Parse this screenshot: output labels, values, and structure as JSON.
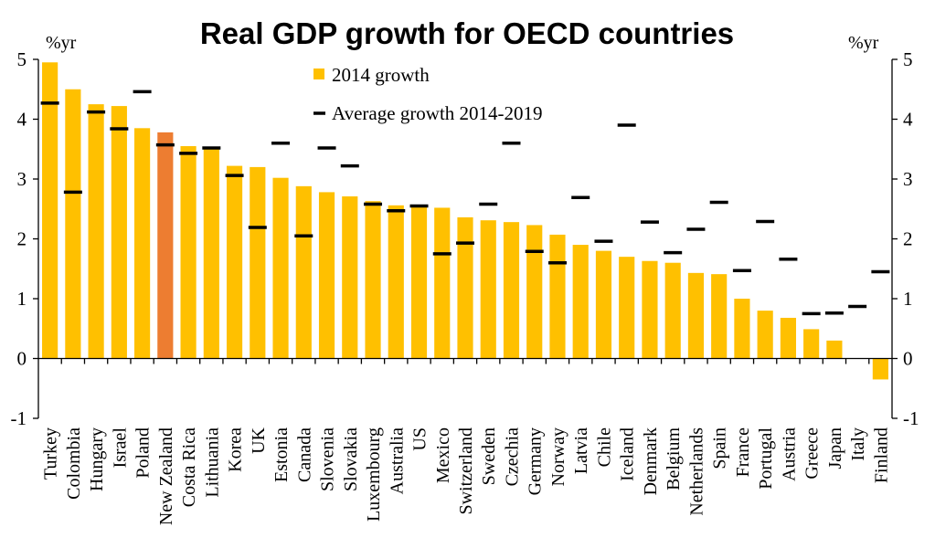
{
  "chart_data": {
    "type": "bar",
    "title": "Real GDP growth for OECD countries",
    "y_unit_left": "%yr",
    "y_unit_right": "%yr",
    "ylim": [
      -1,
      5
    ],
    "yticks": [
      -1,
      0,
      1,
      2,
      3,
      4,
      5
    ],
    "grid": false,
    "legend_position": "top-center",
    "categories": [
      "Turkey",
      "Colombia",
      "Hungary",
      "Israel",
      "Poland",
      "New Zealand",
      "Costa Rica",
      "Lithuania",
      "Korea",
      "UK",
      "Estonia",
      "Canada",
      "Slovenia",
      "Slovakia",
      "Luxembourg",
      "Australia",
      "US",
      "Mexico",
      "Switzerland",
      "Sweden",
      "Czechia",
      "Germany",
      "Norway",
      "Latvia",
      "Chile",
      "Iceland",
      "Denmark",
      "Belgium",
      "Netherlands",
      "Spain",
      "France",
      "Portugal",
      "Austria",
      "Greece",
      "Japan",
      "Italy",
      "Finland"
    ],
    "highlight_category": "New Zealand",
    "series": [
      {
        "name": "2014 growth",
        "mark": "bar",
        "color": "#FFC000",
        "highlight_color": "#ED7D31",
        "values": [
          4.95,
          4.5,
          4.25,
          4.22,
          3.85,
          3.78,
          3.55,
          3.52,
          3.22,
          3.2,
          3.02,
          2.88,
          2.78,
          2.71,
          2.63,
          2.56,
          2.55,
          2.52,
          2.36,
          2.31,
          2.28,
          2.23,
          2.07,
          1.9,
          1.8,
          1.7,
          1.63,
          1.6,
          1.43,
          1.41,
          1.0,
          0.8,
          0.68,
          0.49,
          0.3,
          0.0,
          -0.35
        ]
      },
      {
        "name": "Average growth 2014-2019",
        "mark": "dash",
        "color": "#000000",
        "values": [
          4.27,
          2.78,
          4.12,
          3.84,
          4.46,
          3.57,
          3.43,
          3.52,
          3.06,
          2.19,
          3.6,
          2.05,
          3.52,
          3.22,
          2.58,
          2.47,
          2.55,
          1.75,
          1.93,
          2.58,
          3.6,
          1.79,
          1.6,
          2.69,
          1.96,
          3.9,
          2.28,
          1.77,
          2.16,
          2.61,
          1.47,
          2.29,
          1.66,
          0.75,
          0.76,
          0.87,
          1.45
        ]
      }
    ]
  }
}
